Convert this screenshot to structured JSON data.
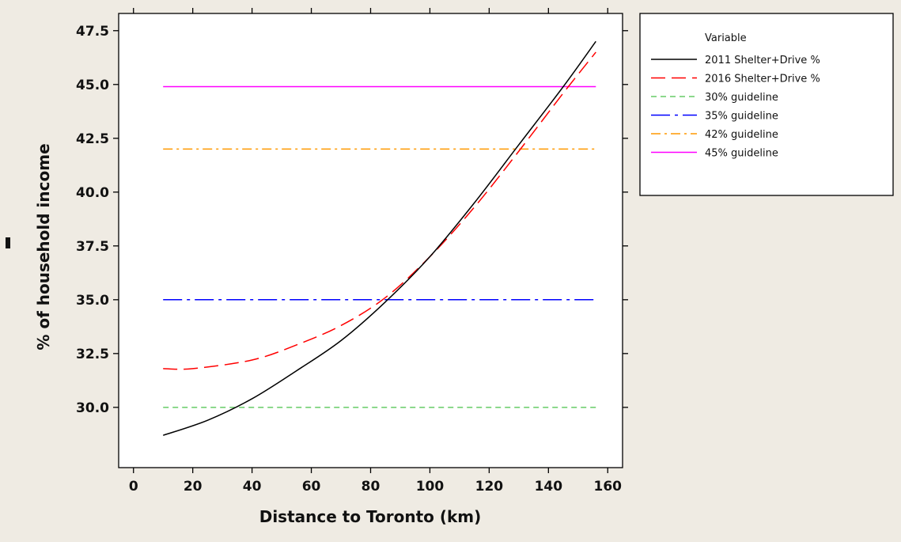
{
  "chart_data": {
    "type": "line",
    "title": "",
    "xlabel": "Distance to Toronto (km)",
    "ylabel": "% of household income",
    "xlim": [
      -5,
      165
    ],
    "ylim": [
      27.2,
      48.3
    ],
    "xticks": [
      0,
      20,
      40,
      60,
      80,
      100,
      120,
      140,
      160
    ],
    "yticks": [
      30.0,
      32.5,
      35.0,
      37.5,
      40.0,
      42.5,
      45.0,
      47.5
    ],
    "ytick_labels": [
      "30.0",
      "32.5",
      "35.0",
      "37.5",
      "40.0",
      "42.5",
      "45.0",
      "47.5"
    ],
    "grid": false,
    "legend": {
      "title": "Variable",
      "placement": "outside-top-right"
    },
    "series": [
      {
        "name": "2011 Shelter+Drive %",
        "color": "#000000",
        "dash": "solid",
        "x": [
          10,
          25,
          40,
          55,
          70,
          85,
          100,
          115,
          130,
          145,
          156
        ],
        "y": [
          28.7,
          29.4,
          30.4,
          31.7,
          33.1,
          34.9,
          37.0,
          39.5,
          42.2,
          44.9,
          47.0
        ]
      },
      {
        "name": "2016 Shelter+Drive %",
        "color": "#ff0000",
        "dash": "long-dash",
        "x": [
          10,
          20,
          40,
          55,
          70,
          85,
          100,
          115,
          130,
          145,
          156
        ],
        "y": [
          31.8,
          31.8,
          32.2,
          32.9,
          33.8,
          35.1,
          37.0,
          39.3,
          41.9,
          44.6,
          46.5
        ]
      },
      {
        "name": "30% guideline",
        "color": "#66cc66",
        "dash": "short-dash",
        "x": [
          10,
          156
        ],
        "y": [
          30.0,
          30.0
        ]
      },
      {
        "name": "35% guideline",
        "color": "#0000ff",
        "dash": "long-dash-dot",
        "x": [
          10,
          156
        ],
        "y": [
          35.0,
          35.0
        ]
      },
      {
        "name": "42% guideline",
        "color": "#ff9900",
        "dash": "dash-dot",
        "x": [
          10,
          156
        ],
        "y": [
          42.0,
          42.0
        ]
      },
      {
        "name": "45% guideline",
        "color": "#ff00ff",
        "dash": "solid",
        "x": [
          10,
          156
        ],
        "y": [
          44.9,
          44.9
        ]
      }
    ]
  }
}
